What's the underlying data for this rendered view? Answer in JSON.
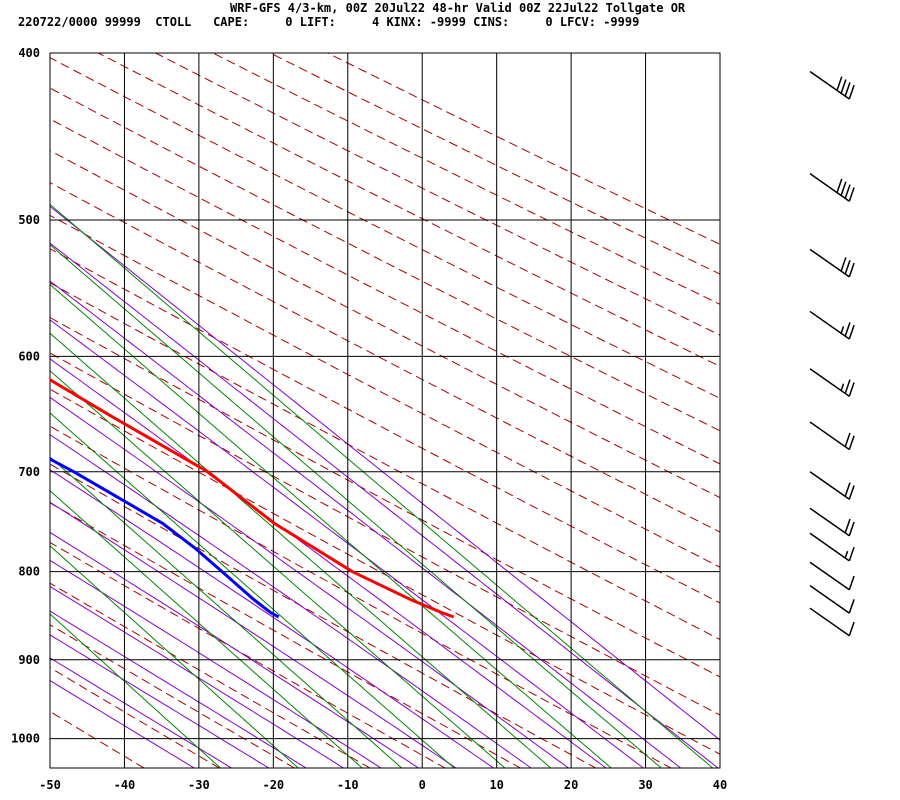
{
  "header": {
    "title": "WRF-GFS 4/3-km, 00Z 20Jul22 48-hr Valid 00Z 22Jul22 Tollgate OR",
    "stats_line": "220722/0000 99999  CTOLL   CAPE:     0 LIFT:     4 KINX: -9999 CINS:     0 LFCV: -9999"
  },
  "colors": {
    "temperature": "#ff0000",
    "dewpoint": "#0000ff",
    "dry_adiabat": "#aa0000",
    "moist_adiabat": "#8800cc",
    "mixing_ratio": "#008800",
    "grid": "#000000"
  },
  "chart_data": {
    "type": "line",
    "title": "",
    "xlabel": "",
    "ylabel": "",
    "xlim": [
      -50,
      40
    ],
    "ylim": [
      1040,
      400
    ],
    "log_y": true,
    "grid": true,
    "x_ticks": [
      -50,
      -40,
      -30,
      -20,
      -10,
      0,
      10,
      20,
      30,
      40
    ],
    "y_ticks": [
      400,
      500,
      600,
      700,
      800,
      900,
      1000
    ],
    "series": [
      {
        "role": "temperature",
        "points": [
          {
            "p": 410,
            "t": -20.5
          },
          {
            "p": 440,
            "t": -17.0
          },
          {
            "p": 470,
            "t": -14.0
          },
          {
            "p": 500,
            "t": -10.0
          },
          {
            "p": 550,
            "t": -6.0
          },
          {
            "p": 600,
            "t": 0.0
          },
          {
            "p": 650,
            "t": 5.5
          },
          {
            "p": 700,
            "t": 11.0
          },
          {
            "p": 750,
            "t": 13.0
          },
          {
            "p": 800,
            "t": 17.0
          },
          {
            "p": 830,
            "t": 21.0
          },
          {
            "p": 845,
            "t": 23.5
          },
          {
            "p": 850,
            "t": 24.5
          }
        ]
      },
      {
        "role": "dewpoint",
        "points": [
          {
            "p": 410,
            "t": -31.5
          },
          {
            "p": 430,
            "t": -31.5
          },
          {
            "p": 465,
            "t": -31.3
          },
          {
            "p": 505,
            "t": -33.5
          },
          {
            "p": 550,
            "t": -31.0
          },
          {
            "p": 600,
            "t": -20.0
          },
          {
            "p": 650,
            "t": -13.5
          },
          {
            "p": 700,
            "t": -7.0
          },
          {
            "p": 750,
            "t": -2.0
          },
          {
            "p": 775,
            "t": -1.0
          },
          {
            "p": 800,
            "t": -0.5
          },
          {
            "p": 830,
            "t": 0.0
          },
          {
            "p": 845,
            "t": 0.5
          },
          {
            "p": 850,
            "t": 1.0
          }
        ]
      }
    ],
    "wind_barbs": [
      {
        "p": 410,
        "kt": 40
      },
      {
        "p": 470,
        "kt": 40
      },
      {
        "p": 520,
        "kt": 30
      },
      {
        "p": 565,
        "kt": 25
      },
      {
        "p": 610,
        "kt": 25
      },
      {
        "p": 655,
        "kt": 20
      },
      {
        "p": 700,
        "kt": 20
      },
      {
        "p": 735,
        "kt": 20
      },
      {
        "p": 760,
        "kt": 15
      },
      {
        "p": 790,
        "kt": 10
      },
      {
        "p": 815,
        "kt": 10
      },
      {
        "p": 840,
        "kt": 10
      }
    ]
  }
}
